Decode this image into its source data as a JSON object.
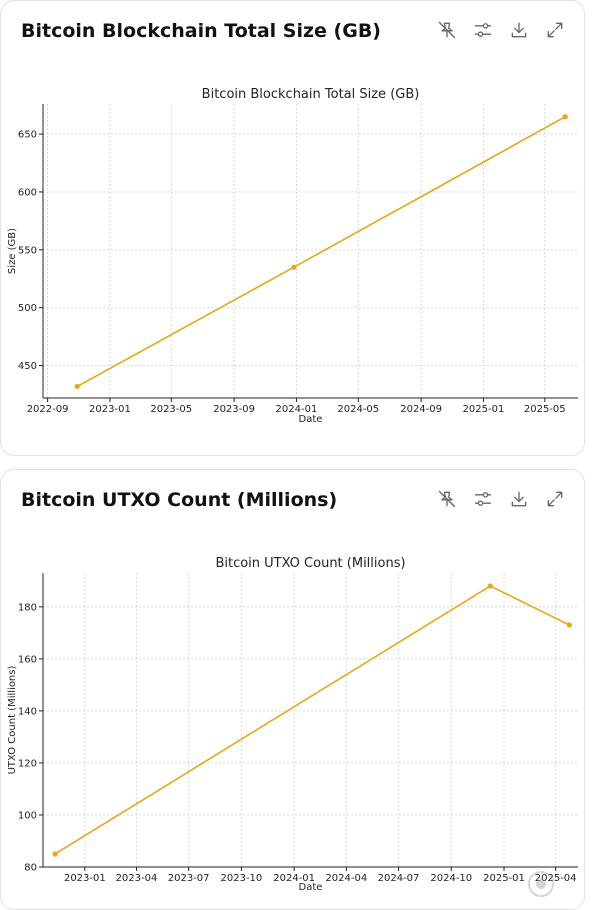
{
  "cards": [
    {
      "title": "Bitcoin Blockchain Total Size (GB)",
      "chart_data": {
        "type": "line",
        "title": "Bitcoin Blockchain Total Size (GB)",
        "xlabel": "Date",
        "ylabel": "Size (GB)",
        "x": [
          "2022-10-29",
          "2023-12-27",
          "2025-06-10"
        ],
        "series": [
          {
            "values": [
              432,
              535,
              665
            ]
          }
        ],
        "xlim": [
          "2022-08-23",
          "2025-07-05"
        ],
        "ylim": [
          422,
          676
        ],
        "xticks": [
          {
            "date": "2022-09-01",
            "label": "2022-09"
          },
          {
            "date": "2023-01-01",
            "label": "2023-01"
          },
          {
            "date": "2023-05-01",
            "label": "2023-05"
          },
          {
            "date": "2023-09-01",
            "label": "2023-09"
          },
          {
            "date": "2024-01-01",
            "label": "2024-01"
          },
          {
            "date": "2024-05-01",
            "label": "2024-05"
          },
          {
            "date": "2024-09-01",
            "label": "2024-09"
          },
          {
            "date": "2025-01-01",
            "label": "2025-01"
          },
          {
            "date": "2025-05-01",
            "label": "2025-05"
          }
        ],
        "yticks": [
          450,
          500,
          550,
          600,
          650
        ],
        "grid": true,
        "color": "#E6A817"
      }
    },
    {
      "title": "Bitcoin UTXO Count (Millions)",
      "chart_data": {
        "type": "line",
        "title": "Bitcoin UTXO Count (Millions)",
        "xlabel": "Date",
        "ylabel": "UTXO Count (Millions)",
        "x": [
          "2022-11-10",
          "2024-12-08",
          "2025-04-25"
        ],
        "series": [
          {
            "values": [
              85,
              188,
              173
            ]
          }
        ],
        "xlim": [
          "2022-10-20",
          "2025-05-10"
        ],
        "ylim": [
          80,
          193
        ],
        "xticks": [
          {
            "date": "2023-01-01",
            "label": "2023-01"
          },
          {
            "date": "2023-04-01",
            "label": "2023-04"
          },
          {
            "date": "2023-07-01",
            "label": "2023-07"
          },
          {
            "date": "2023-10-01",
            "label": "2023-10"
          },
          {
            "date": "2024-01-01",
            "label": "2024-01"
          },
          {
            "date": "2024-04-01",
            "label": "2024-04"
          },
          {
            "date": "2024-07-01",
            "label": "2024-07"
          },
          {
            "date": "2024-10-01",
            "label": "2024-10"
          },
          {
            "date": "2025-01-01",
            "label": "2025-01"
          },
          {
            "date": "2025-04-01",
            "label": "2025-04"
          }
        ],
        "yticks": [
          80,
          100,
          120,
          140,
          160,
          180
        ],
        "grid": true,
        "color": "#E6A817"
      }
    }
  ],
  "toolbar_icons": [
    "pin-off-icon",
    "sliders-icon",
    "download-icon",
    "expand-icon"
  ]
}
